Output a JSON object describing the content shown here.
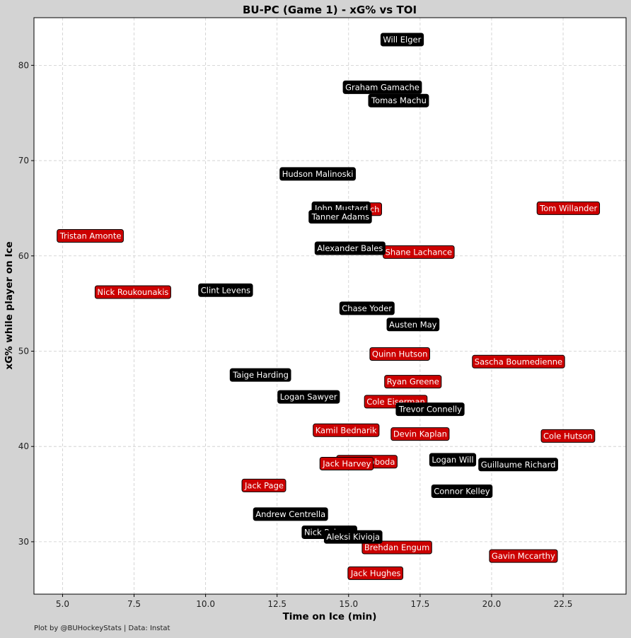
{
  "credit": "Plot by @BUHockeyStats | Data: Instat",
  "colors": {
    "bu": "#cc0000",
    "pc": "#000000",
    "background": "#d3d3d3",
    "plot_bg": "#ffffff",
    "grid": "#cccccc"
  },
  "chart_data": {
    "type": "scatter",
    "title": "BU-PC (Game 1) - xG% vs TOI",
    "xlabel": "Time on Ice (min)",
    "ylabel": "xG% while player on Ice",
    "xlim": [
      4.0,
      24.7
    ],
    "ylim": [
      24.5,
      85.0
    ],
    "xticks": [
      5.0,
      7.5,
      10.0,
      12.5,
      15.0,
      17.5,
      20.0,
      22.5
    ],
    "xtick_labels": [
      "5.0",
      "7.5",
      "10.0",
      "12.5",
      "15.0",
      "17.5",
      "20.0",
      "22.5"
    ],
    "yticks": [
      30,
      40,
      50,
      60,
      70,
      80
    ],
    "ytick_labels": [
      "30",
      "40",
      "50",
      "60",
      "70",
      "80"
    ],
    "grid": true,
    "series": [
      {
        "color": "#cc0000",
        "points": [
          {
            "label": "Tristan Amonte",
            "x": 5.98,
            "y": 62.1
          },
          {
            "label": "Nick Roukounakis",
            "x": 7.46,
            "y": 56.2
          },
          {
            "label": "Luke Tuch",
            "x": 15.38,
            "y": 64.9
          },
          {
            "label": "Tom Willander",
            "x": 22.69,
            "y": 65.0
          },
          {
            "label": "Shane Lachance",
            "x": 17.45,
            "y": 60.4
          },
          {
            "label": "Quinn Hutson",
            "x": 16.79,
            "y": 49.7
          },
          {
            "label": "Sascha Boumedienne",
            "x": 20.94,
            "y": 48.9
          },
          {
            "label": "Ryan Greene",
            "x": 17.25,
            "y": 46.8
          },
          {
            "label": "Cole Eiserman",
            "x": 16.65,
            "y": 44.7
          },
          {
            "label": "Kamil Bednarik",
            "x": 14.91,
            "y": 41.7
          },
          {
            "label": "Devin Kaplan",
            "x": 17.5,
            "y": 41.3
          },
          {
            "label": "Cole Hutson",
            "x": 22.67,
            "y": 41.1
          },
          {
            "label": "Matt Svoboda",
            "x": 15.64,
            "y": 38.4
          },
          {
            "label": "Jack Harvey",
            "x": 14.94,
            "y": 38.2
          },
          {
            "label": "Jack Page",
            "x": 12.05,
            "y": 35.9
          },
          {
            "label": "Brehdan Engum",
            "x": 16.69,
            "y": 29.4
          },
          {
            "label": "Gavin Mccarthy",
            "x": 21.11,
            "y": 28.5
          },
          {
            "label": "Jack Hughes",
            "x": 15.95,
            "y": 26.7
          }
        ]
      },
      {
        "color": "#000000",
        "points": [
          {
            "label": "Will Elger",
            "x": 16.87,
            "y": 82.7
          },
          {
            "label": "Graham Gamache",
            "x": 16.18,
            "y": 77.7
          },
          {
            "label": "Tomas Machu",
            "x": 16.76,
            "y": 76.3
          },
          {
            "label": "Hudson Malinoski",
            "x": 13.92,
            "y": 68.6
          },
          {
            "label": "John Mustard",
            "x": 14.75,
            "y": 65.0
          },
          {
            "label": "Tanner Adams",
            "x": 14.72,
            "y": 64.1
          },
          {
            "label": "Alexander Bales",
            "x": 15.05,
            "y": 60.8
          },
          {
            "label": "Clint Levens",
            "x": 10.7,
            "y": 56.4
          },
          {
            "label": "Chase Yoder",
            "x": 15.64,
            "y": 54.5
          },
          {
            "label": "Austen May",
            "x": 17.25,
            "y": 52.8
          },
          {
            "label": "Taige Harding",
            "x": 11.93,
            "y": 47.5
          },
          {
            "label": "Logan Sawyer",
            "x": 13.6,
            "y": 45.2
          },
          {
            "label": "Trevor Connelly",
            "x": 17.86,
            "y": 43.9
          },
          {
            "label": "Logan Will",
            "x": 18.64,
            "y": 38.6
          },
          {
            "label": "Guillaume Richard",
            "x": 20.93,
            "y": 38.1
          },
          {
            "label": "Connor Kelley",
            "x": 18.96,
            "y": 35.3
          },
          {
            "label": "Andrew Centrella",
            "x": 12.97,
            "y": 32.9
          },
          {
            "label": "Nick Poisson",
            "x": 14.33,
            "y": 31.0
          },
          {
            "label": "Aleksi Kivioja",
            "x": 15.16,
            "y": 30.5
          }
        ]
      }
    ]
  }
}
